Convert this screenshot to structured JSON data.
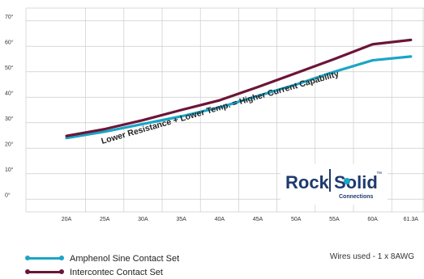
{
  "chart_data": {
    "type": "line",
    "categories": [
      "20A",
      "25A",
      "30A",
      "35A",
      "40A",
      "45A",
      "50A",
      "55A",
      "60A",
      "61.3A"
    ],
    "series": [
      {
        "name": "Amphenol Sine Contact Set",
        "color": "#1aa5c6",
        "values": [
          24.0,
          26.5,
          29.5,
          32.5,
          36.0,
          40.5,
          45.0,
          50.0,
          54.5,
          56.0
        ]
      },
      {
        "name": "Intercontec Contact Set",
        "color": "#6b1538",
        "values": [
          24.8,
          27.5,
          31.0,
          35.0,
          38.8,
          44.0,
          49.5,
          55.0,
          60.8,
          62.5
        ]
      }
    ],
    "y_ticks": [
      "0°",
      "10°",
      "20°",
      "30°",
      "40°",
      "50°",
      "60°",
      "70°"
    ],
    "ylim": [
      -5,
      75
    ],
    "grid": true,
    "annotation": "Lower Resistance + Lower Temp. = Higher Current Capability",
    "legend_placement": "bottom-left"
  },
  "note": "Wires used - 1 x 8AWG",
  "logo": {
    "word1": "Rock",
    "word2": "Solid",
    "tm": "™",
    "sub": "Connections"
  }
}
